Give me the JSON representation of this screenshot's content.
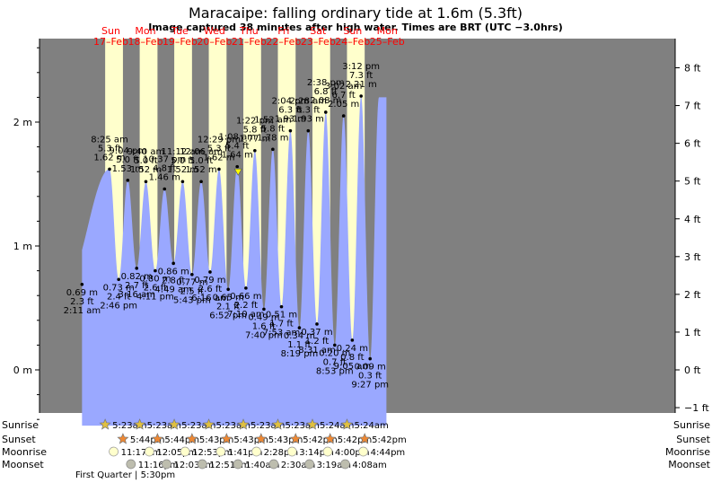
{
  "chart_data": {
    "type": "area",
    "title": "Maracaipe: falling  ordinary tide at 1.6m (5.3ft)",
    "subtitle": "Image captured 38 minutes after high water. Times are BRT (UTC −3.0hrs)",
    "y_left_ticks": [
      {
        "v": 0,
        "label": "0 m"
      },
      {
        "v": 1,
        "label": "1 m"
      },
      {
        "v": 2,
        "label": "2 m"
      }
    ],
    "y_right_ticks": [
      {
        "v": 8,
        "label": "8 ft"
      },
      {
        "v": 7,
        "label": "7 ft"
      },
      {
        "v": 6,
        "label": "6 ft"
      },
      {
        "v": 5,
        "label": "5 ft"
      },
      {
        "v": 4,
        "label": "4 ft"
      },
      {
        "v": 3,
        "label": "3 ft"
      },
      {
        "v": 2,
        "label": "2 ft"
      },
      {
        "v": 1,
        "label": "1 ft"
      },
      {
        "v": 0,
        "label": "0 ft"
      },
      {
        "v": -1,
        "label": "−1 ft"
      }
    ],
    "ylim_m": [
      -0.45,
      2.65
    ],
    "xlim_hours": [
      -6.5,
      205
    ],
    "days": [
      {
        "day": "Sun",
        "date": "17–Feb",
        "t": 0
      },
      {
        "day": "Mon",
        "date": "18–Feb",
        "t": 24
      },
      {
        "day": "Tue",
        "date": "19–Feb",
        "t": 48
      },
      {
        "day": "Wed",
        "date": "20–Feb",
        "t": 72
      },
      {
        "day": "Thu",
        "date": "21–Feb",
        "t": 96
      },
      {
        "day": "Fri",
        "date": "22–Feb",
        "t": 120
      },
      {
        "day": "Sat",
        "date": "23–Feb",
        "t": 144
      },
      {
        "day": "Sun",
        "date": "24–Feb",
        "t": 168
      },
      {
        "day": "Mon",
        "date": "25–Feb",
        "t": 192
      }
    ],
    "day_periods": [
      {
        "start": 5.38,
        "end": 17.73
      },
      {
        "start": 29.38,
        "end": 41.73
      },
      {
        "start": 53.38,
        "end": 65.72
      },
      {
        "start": 77.38,
        "end": 89.72
      },
      {
        "start": 101.38,
        "end": 113.72
      },
      {
        "start": 125.38,
        "end": 137.7
      },
      {
        "start": 149.4,
        "end": 161.7
      },
      {
        "start": 173.4,
        "end": 185.7
      }
    ],
    "series": [
      {
        "name": "Tide height",
        "unit": "m",
        "start_value": 0.69,
        "end_value": 1.62,
        "end_time": 200.8
      }
    ],
    "extremes": [
      {
        "t": -21.82,
        "m": 0.69,
        "ft": "2.3 ft",
        "time": "2:11 am",
        "type": "low",
        "lbl": [
          "0.69 m",
          "2.3 ft",
          "2:11 am"
        ]
      },
      {
        "t": 8.42,
        "m": 1.62,
        "type": "high",
        "lbl": [
          "8:25 am",
          "5.3 ft",
          "1.62 m"
        ]
      },
      {
        "t": 14.77,
        "m": 0.73,
        "type": "low",
        "lbl": [
          "0.73 m",
          "2.4 ft",
          "2:46 pm"
        ]
      },
      {
        "t": 21.07,
        "m": 1.53,
        "type": "high",
        "lbl": [
          "9:04 pm",
          "5.0 ft",
          "1.53 m"
        ]
      },
      {
        "t": 27.27,
        "m": 0.82,
        "type": "low",
        "lbl": [
          "0.82 m",
          "2.7 ft",
          "3:16 am"
        ]
      },
      {
        "t": 33.67,
        "m": 1.52,
        "type": "high",
        "lbl": [
          "9:40 am",
          "5.0 ft",
          "1.52 m"
        ]
      },
      {
        "t": 40.18,
        "m": 0.8,
        "type": "low",
        "lbl": [
          "0.80 m",
          "2.6 ft",
          "4:11 pm"
        ]
      },
      {
        "t": 46.62,
        "m": 1.46,
        "type": "high",
        "lbl": [
          "10:37 pm",
          "4.8 ft",
          "1.46 m"
        ]
      },
      {
        "t": 52.82,
        "m": 0.86,
        "type": "low",
        "lbl": [
          "0.86 m",
          "2.8 ft",
          "4:49 am"
        ]
      },
      {
        "t": 59.2,
        "m": 1.52,
        "type": "high",
        "lbl": [
          "11:12 am",
          "5.0 ft",
          "1.52 m"
        ]
      },
      {
        "t": 65.72,
        "m": 0.77,
        "type": "low",
        "lbl": [
          "0.77 m",
          "2.5 ft",
          "5:43 pm"
        ]
      },
      {
        "t": 72.1,
        "m": 1.52,
        "type": "high",
        "lbl": [
          "12:06 am",
          "5.0 ft",
          "1.52 m"
        ]
      },
      {
        "t": 78.27,
        "m": 0.79,
        "type": "low",
        "lbl": [
          "0.79 m",
          "2.6 ft",
          "6:16 am"
        ]
      },
      {
        "t": 84.48,
        "m": 1.62,
        "type": "high",
        "lbl": [
          "12:29 pm",
          "5.3 ft",
          "1.62 m"
        ]
      },
      {
        "t": 90.87,
        "m": 0.65,
        "type": "low",
        "lbl": [
          "0.65 m",
          "2.1 ft",
          "6:52 pm"
        ]
      },
      {
        "t": 97.13,
        "m": 1.64,
        "type": "high",
        "lbl": [
          "1:08 am",
          "5.4 ft",
          "1.64 m"
        ]
      },
      {
        "t": 103.17,
        "m": 0.66,
        "type": "low",
        "lbl": [
          "0.66 m",
          "2.2 ft",
          "7:10 am"
        ]
      },
      {
        "t": 109.37,
        "m": 1.77,
        "type": "high",
        "lbl": [
          "1:22 pm",
          "5.8 ft",
          "1.77 m"
        ]
      },
      {
        "t": 115.67,
        "m": 0.49,
        "type": "low",
        "lbl": [
          "0.49 m",
          "1.6 ft",
          "7:40 pm"
        ]
      },
      {
        "t": 121.87,
        "m": 1.78,
        "type": "high",
        "lbl": [
          "1:52 am",
          "5.8 ft",
          "1.78 m"
        ]
      },
      {
        "t": 127.88,
        "m": 0.51,
        "type": "low",
        "lbl": [
          "0.51 m",
          "1.7 ft",
          "7:53 am"
        ]
      },
      {
        "t": 134.07,
        "m": 1.93,
        "type": "high",
        "lbl": [
          "2:04 pm",
          "6.3 ft",
          "1.93 m"
        ]
      },
      {
        "t": 140.32,
        "m": 0.34,
        "type": "low",
        "lbl": [
          "0.34 m",
          "1.1 ft",
          "8:19 pm"
        ]
      },
      {
        "t": 146.47,
        "m": 1.93,
        "type": "high",
        "lbl": [
          "2:28 am",
          "6.3 ft",
          "1.93 m"
        ]
      },
      {
        "t": 152.52,
        "m": 0.37,
        "type": "low",
        "lbl": [
          "0.37 m",
          "1.2 ft",
          "8:31 am"
        ]
      },
      {
        "t": 158.63,
        "m": 2.08,
        "type": "high",
        "lbl": [
          "2:38 pm",
          "6.8 ft",
          "2.08 m"
        ]
      },
      {
        "t": 164.88,
        "m": 0.2,
        "type": "low",
        "lbl": [
          "0.20 m",
          "0.7 ft",
          "8:53 pm"
        ]
      },
      {
        "t": 171.03,
        "m": 2.05,
        "type": "high",
        "lbl": [
          "3:02 am",
          "6.7 ft",
          "2.05 m"
        ]
      },
      {
        "t": 177.08,
        "m": 0.24,
        "type": "low",
        "lbl": [
          "0.24 m",
          "0.8 ft",
          "9:05 am"
        ]
      },
      {
        "t": 183.2,
        "m": 2.21,
        "type": "high",
        "lbl": [
          "3:12 pm",
          "7.3 ft",
          "2.21 m"
        ]
      },
      {
        "t": 189.45,
        "m": 0.09,
        "type": "low",
        "lbl": [
          "0.09 m",
          "0.3 ft",
          "9:27 pm"
        ]
      },
      {
        "t": 195.6,
        "m": 2.2,
        "type": "high",
        "lbl": []
      }
    ],
    "first_low_label": [
      "0.69 m",
      "2.3 ft",
      "2:11 am"
    ],
    "current": {
      "t": 97.77,
      "m": 1.6
    },
    "rows": {
      "labels": [
        "Sunrise",
        "Sunset",
        "Moonrise",
        "Moonset"
      ],
      "sunrise": [
        {
          "t": 5.38,
          "label": "5:23am"
        },
        {
          "t": 29.38,
          "label": "5:23am"
        },
        {
          "t": 53.38,
          "label": "5:23am"
        },
        {
          "t": 77.38,
          "label": "5:23am"
        },
        {
          "t": 101.38,
          "label": "5:23am"
        },
        {
          "t": 125.38,
          "label": "5:23am"
        },
        {
          "t": 149.4,
          "label": "5:24am"
        },
        {
          "t": 173.4,
          "label": "5:24am"
        }
      ],
      "sunset": [
        {
          "t": 17.73,
          "label": "5:44pm"
        },
        {
          "t": 41.73,
          "label": "5:44pm"
        },
        {
          "t": 65.72,
          "label": "5:43pm"
        },
        {
          "t": 89.72,
          "label": "5:43pm"
        },
        {
          "t": 113.72,
          "label": "5:43pm"
        },
        {
          "t": 137.7,
          "label": "5:42pm"
        },
        {
          "t": 161.7,
          "label": "5:42pm"
        },
        {
          "t": 185.7,
          "label": "5:42pm"
        }
      ],
      "moonrise": [
        {
          "t": 11.28,
          "label": "11:17am"
        },
        {
          "t": 36.08,
          "label": "12:05pm"
        },
        {
          "t": 60.88,
          "label": "12:53pm"
        },
        {
          "t": 85.68,
          "label": "1:41pm"
        },
        {
          "t": 110.47,
          "label": "2:28pm"
        },
        {
          "t": 135.23,
          "label": "3:14pm"
        },
        {
          "t": 160.0,
          "label": "4:00pm"
        },
        {
          "t": 184.73,
          "label": "4:44pm"
        }
      ],
      "moonset": [
        {
          "t": 23.27,
          "label": "11:16pm"
        },
        {
          "t": 48.05,
          "label": "12:03am"
        },
        {
          "t": 72.85,
          "label": "12:51am"
        },
        {
          "t": 97.67,
          "label": "1:40am"
        },
        {
          "t": 122.5,
          "label": "2:30am"
        },
        {
          "t": 147.32,
          "label": "3:19am"
        },
        {
          "t": 172.13,
          "label": "4:08am"
        }
      ],
      "moon_phase": "First Quarter | 5:30pm"
    }
  },
  "colors": {
    "night": "#808080",
    "day": "#ffffcc",
    "water": "#9aa8ff",
    "date_red": "#ff0000",
    "sun_fill": "#e0c040",
    "sunset_fill": "#ee8833",
    "moonrise_fill": "#ffffcc",
    "moonset_fill": "#bdbdae",
    "marker": "#ffff00"
  }
}
